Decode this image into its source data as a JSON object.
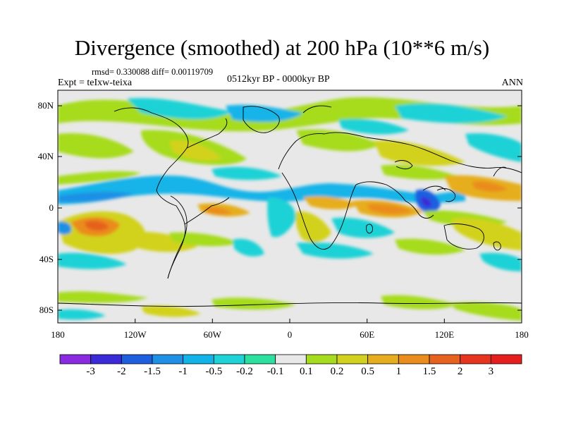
{
  "title": "Divergence (smoothed) at 200 hPa (10**6 m/s)",
  "stats": "rmsd= 0.330088 diff= 0.00119709",
  "experiment": "Expt = teIxw-teixa",
  "period": "0512kyr BP - 0000kyr BP",
  "season": "ANN",
  "y_ticks": [
    "80N",
    "40N",
    "0",
    "40S",
    "80S"
  ],
  "x_ticks": [
    "180",
    "120W",
    "60W",
    "0",
    "60E",
    "120E",
    "180"
  ],
  "colorbar": {
    "labels": [
      "-3",
      "-2",
      "-1.5",
      "-1",
      "-0.5",
      "-0.2",
      "-0.1",
      "0.1",
      "0.2",
      "0.5",
      "1",
      "1.5",
      "2",
      "3"
    ],
    "colors": [
      "#8a2be2",
      "#3a2ad8",
      "#1e5fe0",
      "#1e90e6",
      "#12b4e8",
      "#1ed2d6",
      "#2ee0a0",
      "#e8e8e8",
      "#a6dc1e",
      "#d2d21e",
      "#e6ae1e",
      "#ea8c1e",
      "#e6621e",
      "#e6341e",
      "#e61e1e"
    ]
  },
  "colors": {
    "land_outline": "#000000",
    "neutral": "#e8e8e8"
  }
}
